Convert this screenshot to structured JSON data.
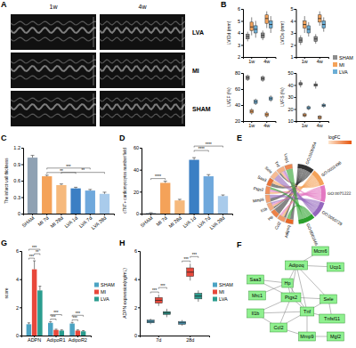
{
  "chart_data": [
    {
      "type": "image",
      "panel_label": "A",
      "columns": [
        "1w",
        "4w"
      ],
      "rows": [
        "LVA",
        "MI",
        "SHAM"
      ]
    },
    {
      "type": "box",
      "panel_label": "B",
      "categories": [
        "1w",
        "4w"
      ],
      "legend": "right",
      "series": [
        {
          "name": "SHAM",
          "color": "#8c8c8c"
        },
        {
          "name": "MI",
          "color": "#f4a259"
        },
        {
          "name": "LVA",
          "color": "#6baed6"
        }
      ],
      "subplots": [
        {
          "ylabel": "LVIDd (mm)",
          "ylim": [
            2,
            6
          ],
          "yticks": [
            2,
            3,
            4,
            5,
            6
          ],
          "values": [
            [
              [
                3.3,
                3.5,
                3.7,
                3.9,
                4.1
              ],
              [
                3.4,
                3.6,
                3.8,
                4.0,
                4.2
              ]
            ],
            [
              [
                3.8,
                4.2,
                4.5,
                4.9,
                5.3
              ],
              [
                4.4,
                4.8,
                5.2,
                5.5,
                5.8
              ]
            ],
            [
              [
                3.6,
                4.0,
                4.3,
                4.6,
                5.0
              ],
              [
                4.0,
                4.4,
                4.7,
                5.0,
                5.4
              ]
            ]
          ]
        },
        {
          "ylabel": "LVIDs (mm)",
          "ylim": [
            1,
            5
          ],
          "yticks": [
            1,
            2,
            3,
            4,
            5
          ],
          "values": [
            [
              [
                2.0,
                2.2,
                2.4,
                2.6,
                2.8
              ],
              [
                2.1,
                2.3,
                2.5,
                2.7,
                2.9
              ]
            ],
            [
              [
                3.0,
                3.4,
                3.7,
                4.0,
                4.4
              ],
              [
                3.6,
                3.9,
                4.2,
                4.5,
                4.8
              ]
            ],
            [
              [
                2.7,
                3.0,
                3.3,
                3.6,
                3.9
              ],
              [
                3.1,
                3.4,
                3.7,
                4.0,
                4.3
              ]
            ]
          ]
        },
        {
          "ylabel": "LVEF (%)",
          "ylim": [
            20,
            80
          ],
          "yticks": [
            20,
            40,
            60,
            80
          ],
          "values": [
            [
              [
                70,
                72,
                74,
                76,
                78
              ],
              [
                69,
                71,
                73,
                75,
                77
              ]
            ],
            [
              [
                28,
                30,
                32,
                34,
                36
              ],
              [
                24,
                26,
                28,
                30,
                32
              ]
            ],
            [
              [
                40,
                42,
                44,
                46,
                48
              ],
              [
                44,
                46,
                48,
                50,
                52
              ]
            ]
          ]
        },
        {
          "ylabel": "LVFS (%)",
          "ylim": [
            10,
            50
          ],
          "yticks": [
            10,
            20,
            30,
            40,
            50
          ],
          "values": [
            [
              [
                38,
                40,
                41,
                42,
                44
              ],
              [
                37,
                39,
                40,
                41,
                43
              ]
            ],
            [
              [
                13,
                14,
                15,
                16,
                17
              ],
              [
                11,
                12,
                13,
                14,
                15
              ]
            ],
            [
              [
                19,
                20,
                21,
                22,
                23
              ],
              [
                21,
                22,
                23,
                24,
                25
              ]
            ]
          ]
        }
      ]
    },
    {
      "type": "bar",
      "panel_label": "C",
      "ylabel": "The infarct wall thickness",
      "categories": [
        "SHAM",
        "MI 7d",
        "MI 28d",
        "LVA 1d",
        "LVA 7d",
        "LVA 28d"
      ],
      "values": [
        1.02,
        0.68,
        0.52,
        0.46,
        0.42,
        0.36
      ],
      "errors": [
        0.04,
        0.02,
        0.02,
        0.02,
        0.02,
        0.03
      ],
      "colors": [
        "#8fa1b3",
        "#f4a259",
        "#f6b97c",
        "#3b7fc4",
        "#6fa8dc",
        "#a9cbeb"
      ],
      "ylim": [
        0,
        1.2
      ],
      "yticks": [
        0,
        0.3,
        0.6,
        0.9,
        1.2
      ],
      "brackets": [
        {
          "from": 1,
          "to": 3,
          "label": "**"
        },
        {
          "from": 1,
          "to": 4,
          "label": "***"
        },
        {
          "from": 2,
          "to": 5,
          "label": "**"
        }
      ]
    },
    {
      "type": "bar",
      "panel_label": "D",
      "ylabel": "cTNT+ cardiomyocytes number/field",
      "categories": [
        "SHAM",
        "MI 7d",
        "MI 28d",
        "LVA 1d",
        "LVA 7d",
        "LVA 28d"
      ],
      "values": [
        0.5,
        28,
        12,
        49,
        34,
        16
      ],
      "errors": [
        0.3,
        1.5,
        1,
        2,
        1.5,
        1
      ],
      "colors": [
        "#8fa1b3",
        "#f4a259",
        "#f6b97c",
        "#3b7fc4",
        "#6fa8dc",
        "#a9cbeb"
      ],
      "ylim": [
        0,
        60
      ],
      "yticks": [
        0,
        20,
        40,
        60
      ],
      "brackets": [
        {
          "from": 0,
          "to": 1,
          "label": "****"
        },
        {
          "from": 3,
          "to": 4,
          "label": "****"
        },
        {
          "from": 3,
          "to": 5,
          "label": "****"
        }
      ]
    },
    {
      "type": "chord",
      "panel_label": "E",
      "legend_title": "logFC",
      "logfc_range": [
        0,
        4
      ],
      "genes": [
        {
          "name": "Adipoq",
          "logFC": 3.5
        },
        {
          "name": "Ccl2",
          "logFC": 2.1
        },
        {
          "name": "Hp",
          "logFC": 2.8
        },
        {
          "name": "Il1b",
          "logFC": 1.6
        },
        {
          "name": "Mmp9",
          "logFC": 1.9
        },
        {
          "name": "Ptgs2",
          "logFC": 2.4
        },
        {
          "name": "Saa3",
          "logFC": 3.2
        },
        {
          "name": "Sele",
          "logFC": 1.2
        },
        {
          "name": "Tnf",
          "logFC": 1.5
        },
        {
          "name": "Ucp1",
          "logFC": 2.6
        }
      ],
      "terms": [
        {
          "name": "GO:0006954",
          "color": "#333333"
        },
        {
          "name": "GO:0032496",
          "color": "#f4a259"
        },
        {
          "name": "GO:0071222",
          "color": "#e377c2"
        },
        {
          "name": "GO:0050729",
          "color": "#9467bd"
        },
        {
          "name": "GO:0001666",
          "color": "#2ca02c"
        }
      ],
      "links": [
        [
          0,
          0
        ],
        [
          0,
          4
        ],
        [
          1,
          0
        ],
        [
          1,
          1
        ],
        [
          1,
          2
        ],
        [
          2,
          0
        ],
        [
          3,
          0
        ],
        [
          3,
          1
        ],
        [
          3,
          2
        ],
        [
          3,
          3
        ],
        [
          4,
          0
        ],
        [
          4,
          3
        ],
        [
          5,
          1
        ],
        [
          5,
          2
        ],
        [
          5,
          4
        ],
        [
          6,
          0
        ],
        [
          6,
          1
        ],
        [
          7,
          3
        ],
        [
          8,
          0
        ],
        [
          8,
          1
        ],
        [
          8,
          2
        ],
        [
          8,
          3
        ],
        [
          9,
          4
        ]
      ]
    },
    {
      "type": "network",
      "panel_label": "F",
      "nodes": [
        "Mcm6",
        "Adipoq",
        "Ucp1",
        "Saa3",
        "Hp",
        "Mrc1",
        "Ptgs2",
        "Sele",
        "Il1b",
        "Tnf",
        "Tnfsf11",
        "Ccl2",
        "Mmp9",
        "Mgl2"
      ],
      "edges": [
        [
          0,
          1
        ],
        [
          1,
          2
        ],
        [
          1,
          4
        ],
        [
          1,
          6
        ],
        [
          1,
          9
        ],
        [
          1,
          7
        ],
        [
          3,
          4
        ],
        [
          4,
          5
        ],
        [
          4,
          6
        ],
        [
          4,
          9
        ],
        [
          6,
          8
        ],
        [
          6,
          9
        ],
        [
          6,
          11
        ],
        [
          6,
          7
        ],
        [
          8,
          9
        ],
        [
          9,
          11
        ],
        [
          9,
          7
        ],
        [
          9,
          10
        ],
        [
          11,
          12
        ],
        [
          9,
          12
        ],
        [
          12,
          13
        ],
        [
          7,
          10
        ],
        [
          3,
          6
        ],
        [
          8,
          11
        ]
      ]
    },
    {
      "type": "bar",
      "panel_label": "G",
      "ylabel": "score",
      "categories": [
        "ADPN",
        "AdipoR1",
        "AdipoR2"
      ],
      "legend": "right",
      "series": [
        {
          "name": "SHAM",
          "color": "#4ba3c3",
          "values": [
            0.8,
            0.9,
            0.85
          ],
          "errors": [
            0.1,
            0.08,
            0.08
          ]
        },
        {
          "name": "MI",
          "color": "#e8483b",
          "values": [
            4.7,
            0.4,
            0.35
          ],
          "errors": [
            0.6,
            0.05,
            0.05
          ]
        },
        {
          "name": "LVA",
          "color": "#2a9d8f",
          "values": [
            3.2,
            0.35,
            0.3
          ],
          "errors": [
            0.3,
            0.05,
            0.05
          ]
        }
      ],
      "ylim": [
        0,
        6
      ],
      "yticks": [
        0,
        2,
        4,
        6
      ],
      "brackets": [
        {
          "category": 0,
          "from": 0,
          "to": 1,
          "label": "***"
        },
        {
          "category": 0,
          "from": 1,
          "to": 2,
          "label": "**"
        },
        {
          "category": 0,
          "from": 0,
          "to": 2,
          "label": "***"
        },
        {
          "category": 1,
          "from": 0,
          "to": 1,
          "label": "***"
        },
        {
          "category": 1,
          "from": 0,
          "to": 2,
          "label": "***"
        },
        {
          "category": 2,
          "from": 0,
          "to": 1,
          "label": "***"
        },
        {
          "category": 2,
          "from": 0,
          "to": 2,
          "label": "***"
        }
      ]
    },
    {
      "type": "box",
      "panel_label": "H",
      "ylabel": "ADPN expression(ng/mL)",
      "categories": [
        "7d",
        "28d"
      ],
      "legend": "right",
      "series": [
        {
          "name": "SHAM",
          "color": "#4ba3c3",
          "values": [
            [
              0.8,
              0.9,
              1.0,
              1.1,
              1.2
            ],
            [
              0.7,
              0.8,
              0.9,
              1.0,
              1.1
            ]
          ]
        },
        {
          "name": "MI",
          "color": "#e8483b",
          "values": [
            [
              2.1,
              2.3,
              2.5,
              2.7,
              2.9
            ],
            [
              3.9,
              4.2,
              4.5,
              4.8,
              5.1
            ]
          ]
        },
        {
          "name": "LVA",
          "color": "#2a9d8f",
          "values": [
            [
              1.3,
              1.5,
              1.6,
              1.7,
              1.9
            ],
            [
              2.4,
              2.6,
              2.8,
              3.0,
              3.2
            ]
          ]
        }
      ],
      "ylim": [
        0,
        6
      ],
      "yticks": [
        0,
        2,
        4,
        6
      ],
      "brackets": [
        {
          "category": 0,
          "from": 0,
          "to": 1,
          "label": "***"
        },
        {
          "category": 0,
          "from": 1,
          "to": 2,
          "label": "***"
        },
        {
          "category": 1,
          "from": 0,
          "to": 1,
          "label": "***"
        },
        {
          "category": 1,
          "from": 1,
          "to": 2,
          "label": "***"
        }
      ]
    }
  ]
}
